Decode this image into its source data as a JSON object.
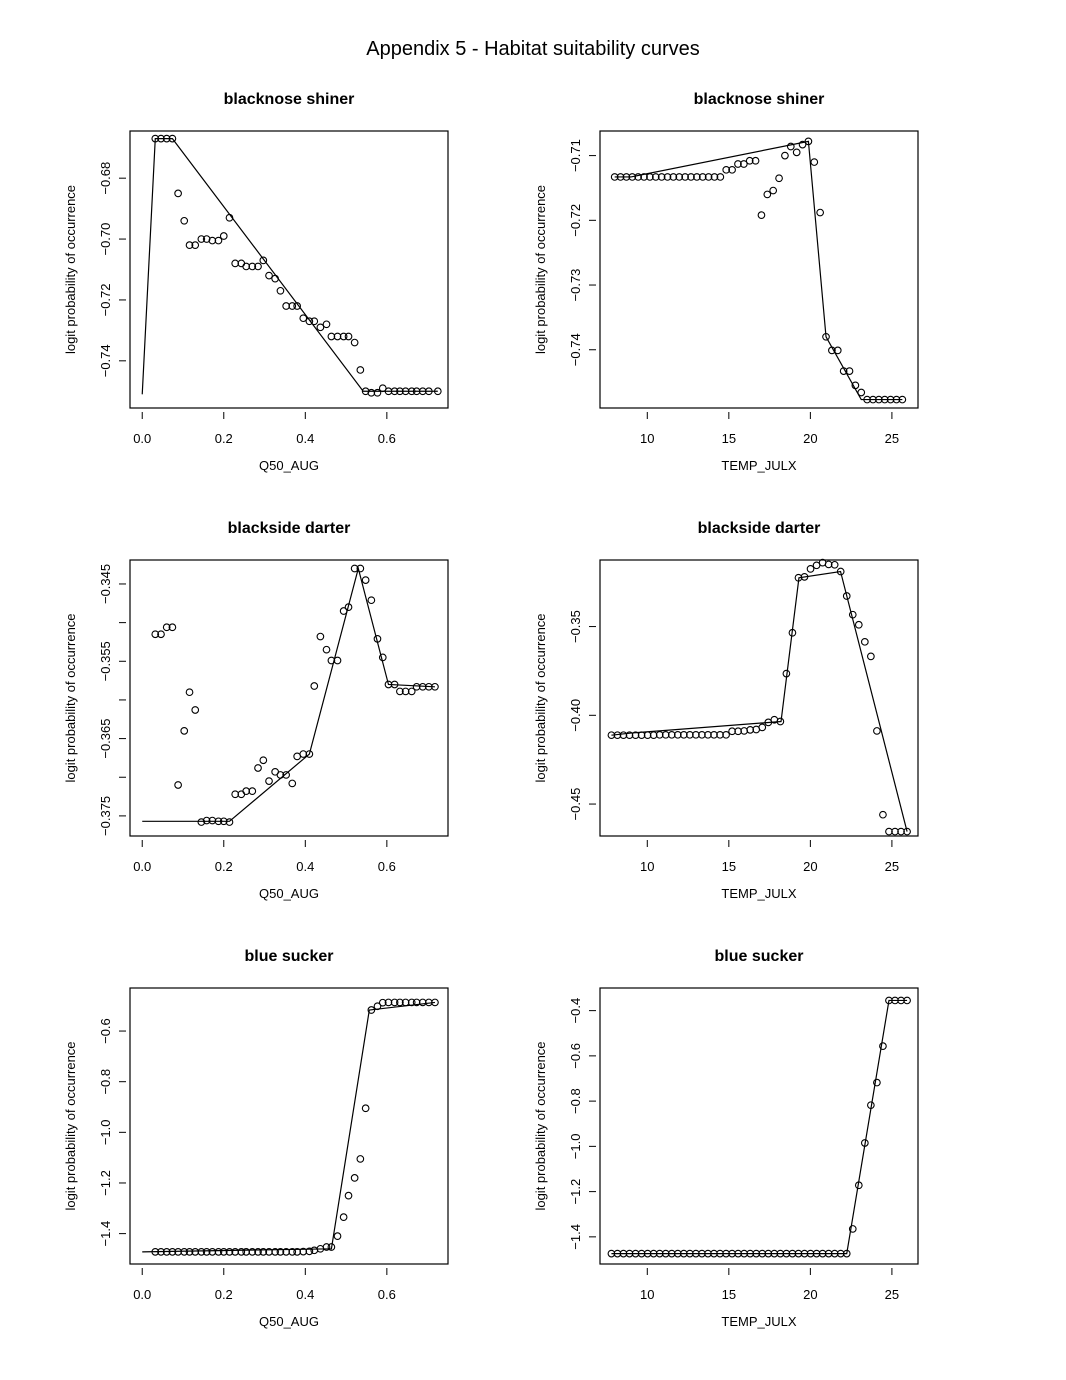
{
  "page": {
    "title": "Appendix 5 - Habitat suitability curves"
  },
  "chart_data": [
    {
      "type": "scatter",
      "title": "blacknose shiner",
      "xlabel": "Q50_AUG",
      "ylabel": "logit probability of occurrence",
      "xlim": [
        -0.03,
        0.75
      ],
      "ylim": [
        -0.7555,
        -0.6645
      ],
      "xticks": [
        0.0,
        0.2,
        0.4,
        0.6
      ],
      "xtick_labels": [
        "0.0",
        "0.2",
        "0.4",
        "0.6"
      ],
      "yticks": [
        -0.68,
        -0.7,
        -0.72,
        -0.74
      ],
      "ytick_labels": [
        "-0.68",
        "-0.70",
        "-0.72",
        "-0.74"
      ],
      "grid": false,
      "series": [
        {
          "name": "points",
          "type": "scatter",
          "x": [
            0.032,
            0.046,
            0.06,
            0.074,
            0.088,
            0.103,
            0.116,
            0.13,
            0.145,
            0.158,
            0.172,
            0.187,
            0.2,
            0.214,
            0.228,
            0.243,
            0.255,
            0.27,
            0.284,
            0.297,
            0.311,
            0.326,
            0.339,
            0.353,
            0.368,
            0.38,
            0.395,
            0.41,
            0.422,
            0.437,
            0.452,
            0.464,
            0.479,
            0.494,
            0.506,
            0.521,
            0.535,
            0.548,
            0.562,
            0.577,
            0.59,
            0.604,
            0.619,
            0.632,
            0.646,
            0.661,
            0.673,
            0.688,
            0.703,
            0.725
          ],
          "y": [
            -0.667,
            -0.667,
            -0.667,
            -0.667,
            -0.685,
            -0.694,
            -0.702,
            -0.702,
            -0.7,
            -0.7,
            -0.7005,
            -0.7005,
            -0.699,
            -0.693,
            -0.708,
            -0.708,
            -0.709,
            -0.709,
            -0.709,
            -0.707,
            -0.712,
            -0.713,
            -0.717,
            -0.722,
            -0.722,
            -0.722,
            -0.726,
            -0.727,
            -0.727,
            -0.729,
            -0.728,
            -0.732,
            -0.732,
            -0.732,
            -0.732,
            -0.734,
            -0.743,
            -0.75,
            -0.7505,
            -0.7505,
            -0.749,
            -0.75,
            -0.75,
            -0.75,
            -0.75,
            -0.75,
            -0.75,
            -0.75,
            -0.75,
            -0.75
          ]
        },
        {
          "name": "fit",
          "type": "line",
          "x": [
            0.0,
            0.032,
            0.074,
            0.542,
            0.725
          ],
          "y": [
            -0.751,
            -0.667,
            -0.667,
            -0.75,
            -0.75
          ]
        }
      ]
    },
    {
      "type": "scatter",
      "title": "blacknose shiner",
      "xlabel": "TEMP_JULX",
      "ylabel": "logit probability of occurrence",
      "xlim": [
        7.1,
        26.6
      ],
      "ylim": [
        -0.749,
        -0.7062
      ],
      "xticks": [
        10,
        15,
        20,
        25
      ],
      "xtick_labels": [
        "10",
        "15",
        "20",
        "25"
      ],
      "yticks": [
        -0.71,
        -0.72,
        -0.73,
        -0.74
      ],
      "ytick_labels": [
        "-0.71",
        "-0.72",
        "-0.73",
        "-0.74"
      ],
      "grid": false,
      "series": [
        {
          "name": "points",
          "type": "scatter",
          "x": [
            8.0,
            8.36,
            8.72,
            9.08,
            9.44,
            9.8,
            10.16,
            10.52,
            10.88,
            11.24,
            11.6,
            11.96,
            12.32,
            12.68,
            13.04,
            13.4,
            13.76,
            14.12,
            14.48,
            14.84,
            15.2,
            15.56,
            15.92,
            16.28,
            16.64,
            17.0,
            17.36,
            17.72,
            18.08,
            18.44,
            18.8,
            19.16,
            19.52,
            19.88,
            20.24,
            20.6,
            20.96,
            21.32,
            21.68,
            22.04,
            22.4,
            22.76,
            23.12,
            23.48,
            23.84,
            24.2,
            24.56,
            24.92,
            25.28,
            25.64
          ],
          "y": [
            -0.7133,
            -0.7133,
            -0.7133,
            -0.7133,
            -0.7133,
            -0.7133,
            -0.7133,
            -0.7133,
            -0.7133,
            -0.7133,
            -0.7133,
            -0.7133,
            -0.7133,
            -0.7133,
            -0.7133,
            -0.7133,
            -0.7133,
            -0.7133,
            -0.7133,
            -0.7122,
            -0.7122,
            -0.7113,
            -0.7113,
            -0.7108,
            -0.7108,
            -0.7192,
            -0.716,
            -0.7154,
            -0.7135,
            -0.71,
            -0.7086,
            -0.7095,
            -0.7083,
            -0.7078,
            -0.711,
            -0.7188,
            -0.738,
            -0.7401,
            -0.7401,
            -0.7433,
            -0.7433,
            -0.7455,
            -0.7466,
            -0.7477,
            -0.7477,
            -0.7477,
            -0.7477,
            -0.7477,
            -0.7477,
            -0.7477
          ]
        },
        {
          "name": "fit",
          "type": "line",
          "x": [
            8.0,
            9.0,
            19.88,
            20.96,
            23.12,
            25.64
          ],
          "y": [
            -0.7133,
            -0.7133,
            -0.7078,
            -0.738,
            -0.7477,
            -0.7477
          ]
        }
      ]
    },
    {
      "type": "scatter",
      "title": "blackside darter",
      "xlabel": "Q50_AUG",
      "ylabel": "logit probability of occurrence",
      "xlim": [
        -0.03,
        0.75
      ],
      "ylim": [
        -0.3776,
        -0.3419
      ],
      "xticks": [
        0.0,
        0.2,
        0.4,
        0.6
      ],
      "xtick_labels": [
        "0.0",
        "0.2",
        "0.4",
        "0.6"
      ],
      "yticks": [
        -0.345,
        -0.35,
        -0.355,
        -0.36,
        -0.365,
        -0.37,
        -0.375
      ],
      "ytick_labels": [
        "-0.345",
        "",
        "-0.355",
        "",
        "-0.365",
        "",
        "-0.375"
      ],
      "grid": false,
      "series": [
        {
          "name": "points",
          "type": "scatter",
          "x": [
            0.032,
            0.046,
            0.06,
            0.074,
            0.088,
            0.103,
            0.116,
            0.13,
            0.145,
            0.158,
            0.172,
            0.187,
            0.2,
            0.214,
            0.228,
            0.243,
            0.255,
            0.27,
            0.284,
            0.297,
            0.311,
            0.326,
            0.339,
            0.353,
            0.368,
            0.38,
            0.395,
            0.41,
            0.422,
            0.437,
            0.452,
            0.464,
            0.479,
            0.494,
            0.506,
            0.521,
            0.535,
            0.548,
            0.562,
            0.577,
            0.59,
            0.604,
            0.619,
            0.632,
            0.646,
            0.661,
            0.673,
            0.688,
            0.703,
            0.718
          ],
          "y": [
            -0.3515,
            -0.3515,
            -0.3506,
            -0.3506,
            -0.371,
            -0.364,
            -0.359,
            -0.3613,
            -0.3758,
            -0.3756,
            -0.3756,
            -0.3757,
            -0.3757,
            -0.3758,
            -0.3722,
            -0.3722,
            -0.3718,
            -0.3718,
            -0.3688,
            -0.3678,
            -0.3705,
            -0.3693,
            -0.3697,
            -0.3697,
            -0.3708,
            -0.3673,
            -0.367,
            -0.367,
            -0.3582,
            -0.3518,
            -0.3535,
            -0.3549,
            -0.3549,
            -0.3485,
            -0.348,
            -0.343,
            -0.343,
            -0.3445,
            -0.3471,
            -0.3521,
            -0.3545,
            -0.358,
            -0.358,
            -0.3589,
            -0.3589,
            -0.3589,
            -0.3583,
            -0.3583,
            -0.3583,
            -0.3583
          ]
        },
        {
          "name": "fit",
          "type": "line",
          "x": [
            0.0,
            0.214,
            0.41,
            0.53,
            0.604,
            0.718
          ],
          "y": [
            -0.3757,
            -0.3757,
            -0.367,
            -0.343,
            -0.358,
            -0.3583
          ]
        }
      ]
    },
    {
      "type": "scatter",
      "title": "blackside darter",
      "xlabel": "TEMP_JULX",
      "ylabel": "logit probability of occurrence",
      "xlim": [
        7.1,
        26.6
      ],
      "ylim": [
        -0.468,
        -0.3125
      ],
      "xticks": [
        10,
        15,
        20,
        25
      ],
      "xtick_labels": [
        "10",
        "15",
        "20",
        "25"
      ],
      "yticks": [
        -0.35,
        -0.4,
        -0.45
      ],
      "ytick_labels": [
        "-0.35",
        "-0.40",
        "-0.45"
      ],
      "grid": false,
      "series": [
        {
          "name": "points",
          "type": "scatter",
          "x": [
            7.8,
            8.17,
            8.54,
            8.91,
            9.28,
            9.65,
            10.02,
            10.39,
            10.76,
            11.13,
            11.5,
            11.87,
            12.24,
            12.61,
            12.98,
            13.35,
            13.72,
            14.09,
            14.46,
            14.83,
            15.2,
            15.57,
            15.94,
            16.31,
            16.68,
            17.05,
            17.42,
            17.79,
            18.16,
            18.53,
            18.9,
            19.27,
            19.64,
            20.01,
            20.38,
            20.75,
            21.12,
            21.49,
            21.86,
            22.23,
            22.6,
            22.97,
            23.34,
            23.71,
            24.08,
            24.45,
            24.82,
            25.19,
            25.56,
            25.93
          ],
          "y": [
            -0.4112,
            -0.4112,
            -0.4112,
            -0.4112,
            -0.4112,
            -0.4112,
            -0.4112,
            -0.4112,
            -0.411,
            -0.411,
            -0.411,
            -0.411,
            -0.411,
            -0.411,
            -0.411,
            -0.411,
            -0.411,
            -0.411,
            -0.411,
            -0.411,
            -0.409,
            -0.409,
            -0.4088,
            -0.4082,
            -0.408,
            -0.4068,
            -0.404,
            -0.4025,
            -0.4035,
            -0.3765,
            -0.3535,
            -0.3225,
            -0.322,
            -0.3175,
            -0.3155,
            -0.314,
            -0.315,
            -0.3152,
            -0.319,
            -0.3328,
            -0.3433,
            -0.349,
            -0.3586,
            -0.3668,
            -0.4088,
            -0.456,
            -0.4655,
            -0.4655,
            -0.4655,
            -0.4655
          ]
        },
        {
          "name": "fit",
          "type": "line",
          "x": [
            7.8,
            9.0,
            18.2,
            19.3,
            21.85,
            25.93
          ],
          "y": [
            -0.4112,
            -0.41,
            -0.4035,
            -0.3225,
            -0.319,
            -0.4655
          ]
        }
      ]
    },
    {
      "type": "scatter",
      "title": "blue sucker",
      "xlabel": "Q50_AUG",
      "ylabel": "logit probability of occurrence",
      "xlim": [
        -0.03,
        0.75
      ],
      "ylim": [
        -1.52,
        -0.43
      ],
      "xticks": [
        0.0,
        0.2,
        0.4,
        0.6
      ],
      "xtick_labels": [
        "0.0",
        "0.2",
        "0.4",
        "0.6"
      ],
      "yticks": [
        -0.6,
        -0.8,
        -1.0,
        -1.2,
        -1.4
      ],
      "ytick_labels": [
        "-0.6",
        "-0.8",
        "-1.0",
        "-1.2",
        "-1.4"
      ],
      "grid": false,
      "series": [
        {
          "name": "points",
          "type": "scatter",
          "x": [
            0.032,
            0.046,
            0.06,
            0.074,
            0.088,
            0.103,
            0.116,
            0.13,
            0.145,
            0.158,
            0.172,
            0.187,
            0.2,
            0.214,
            0.228,
            0.243,
            0.255,
            0.27,
            0.284,
            0.297,
            0.311,
            0.326,
            0.339,
            0.353,
            0.368,
            0.38,
            0.395,
            0.41,
            0.422,
            0.437,
            0.452,
            0.464,
            0.479,
            0.494,
            0.506,
            0.521,
            0.535,
            0.548,
            0.562,
            0.577,
            0.59,
            0.604,
            0.619,
            0.632,
            0.646,
            0.661,
            0.673,
            0.688,
            0.703,
            0.718
          ],
          "y": [
            -1.472,
            -1.472,
            -1.472,
            -1.472,
            -1.472,
            -1.472,
            -1.472,
            -1.472,
            -1.472,
            -1.472,
            -1.472,
            -1.472,
            -1.472,
            -1.472,
            -1.472,
            -1.472,
            -1.472,
            -1.472,
            -1.472,
            -1.472,
            -1.472,
            -1.472,
            -1.472,
            -1.472,
            -1.472,
            -1.472,
            -1.471,
            -1.47,
            -1.466,
            -1.46,
            -1.453,
            -1.453,
            -1.41,
            -1.335,
            -1.25,
            -1.18,
            -1.105,
            -0.905,
            -0.517,
            -0.502,
            -0.488,
            -0.487,
            -0.487,
            -0.487,
            -0.487,
            -0.487,
            -0.487,
            -0.487,
            -0.487,
            -0.487
          ]
        },
        {
          "name": "fit",
          "type": "line",
          "x": [
            0.0,
            0.464,
            0.557,
            0.718
          ],
          "y": [
            -1.472,
            -1.46,
            -0.517,
            -0.487
          ]
        }
      ]
    },
    {
      "type": "scatter",
      "title": "blue sucker",
      "xlabel": "TEMP_JULX",
      "ylabel": "logit probability of occurrence",
      "xlim": [
        7.1,
        26.6
      ],
      "ylim": [
        -1.52,
        -0.3
      ],
      "xticks": [
        10,
        15,
        20,
        25
      ],
      "xtick_labels": [
        "10",
        "15",
        "20",
        "25"
      ],
      "yticks": [
        -0.4,
        -0.6,
        -0.8,
        -1.0,
        -1.2,
        -1.4
      ],
      "ytick_labels": [
        "-0.4",
        "-0.6",
        "-0.8",
        "-1.0",
        "-1.2",
        "-1.4"
      ],
      "grid": false,
      "series": [
        {
          "name": "points",
          "type": "scatter",
          "x": [
            7.8,
            8.17,
            8.54,
            8.91,
            9.28,
            9.65,
            10.02,
            10.39,
            10.76,
            11.13,
            11.5,
            11.87,
            12.24,
            12.61,
            12.98,
            13.35,
            13.72,
            14.09,
            14.46,
            14.83,
            15.2,
            15.57,
            15.94,
            16.31,
            16.68,
            17.05,
            17.42,
            17.79,
            18.16,
            18.53,
            18.9,
            19.27,
            19.64,
            20.01,
            20.38,
            20.75,
            21.12,
            21.49,
            21.86,
            22.23,
            22.6,
            22.97,
            23.34,
            23.71,
            24.08,
            24.45,
            24.82,
            25.19,
            25.56,
            25.93
          ],
          "y": [
            -1.474,
            -1.474,
            -1.474,
            -1.474,
            -1.474,
            -1.474,
            -1.474,
            -1.474,
            -1.474,
            -1.474,
            -1.474,
            -1.474,
            -1.474,
            -1.474,
            -1.474,
            -1.474,
            -1.474,
            -1.474,
            -1.474,
            -1.474,
            -1.474,
            -1.474,
            -1.474,
            -1.474,
            -1.474,
            -1.474,
            -1.474,
            -1.474,
            -1.474,
            -1.474,
            -1.474,
            -1.474,
            -1.474,
            -1.474,
            -1.474,
            -1.474,
            -1.474,
            -1.474,
            -1.474,
            -1.474,
            -1.365,
            -1.172,
            -0.985,
            -0.818,
            -0.718,
            -0.557,
            -0.355,
            -0.355,
            -0.355,
            -0.355
          ]
        },
        {
          "name": "fit",
          "type": "line",
          "x": [
            7.8,
            22.23,
            24.82,
            25.93
          ],
          "y": [
            -1.474,
            -1.474,
            -0.355,
            -0.355
          ]
        }
      ]
    }
  ]
}
